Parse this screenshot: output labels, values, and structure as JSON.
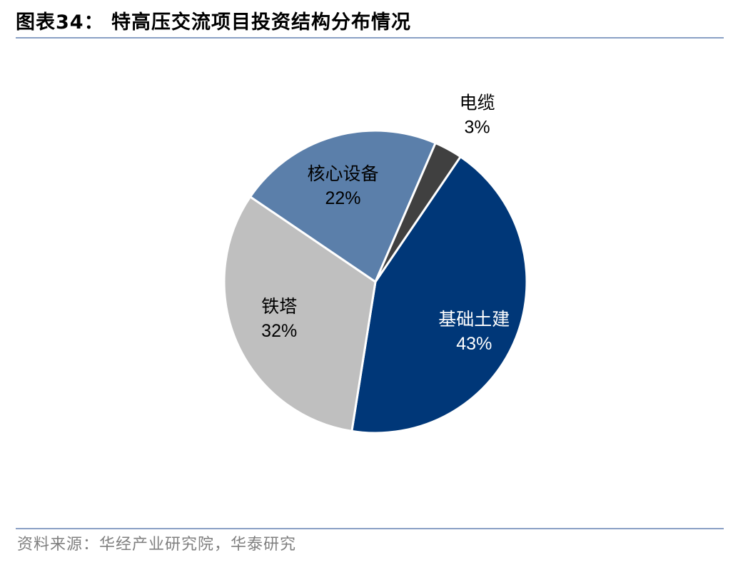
{
  "header": {
    "title": "图表34：  特高压交流项目投资结构分布情况"
  },
  "footer": {
    "source": "资料来源：华经产业研究院，华泰研究"
  },
  "colors": {
    "rule": "#8aa0c5",
    "source_text": "#7f7f7f"
  },
  "chart_data": {
    "type": "pie",
    "title": "",
    "slices": [
      {
        "label": "基础土建",
        "value": 43,
        "display": "43%",
        "color": "#003778",
        "label_color": "#ffffff"
      },
      {
        "label": "铁塔",
        "value": 32,
        "display": "32%",
        "color": "#bfbfbf",
        "label_color": "#000000"
      },
      {
        "label": "核心设备",
        "value": 22,
        "display": "22%",
        "color": "#5b7faa",
        "label_color": "#000000"
      },
      {
        "label": "电缆",
        "value": 3,
        "display": "3%",
        "color": "#404040",
        "label_color": "#000000"
      }
    ],
    "legend": "none"
  }
}
